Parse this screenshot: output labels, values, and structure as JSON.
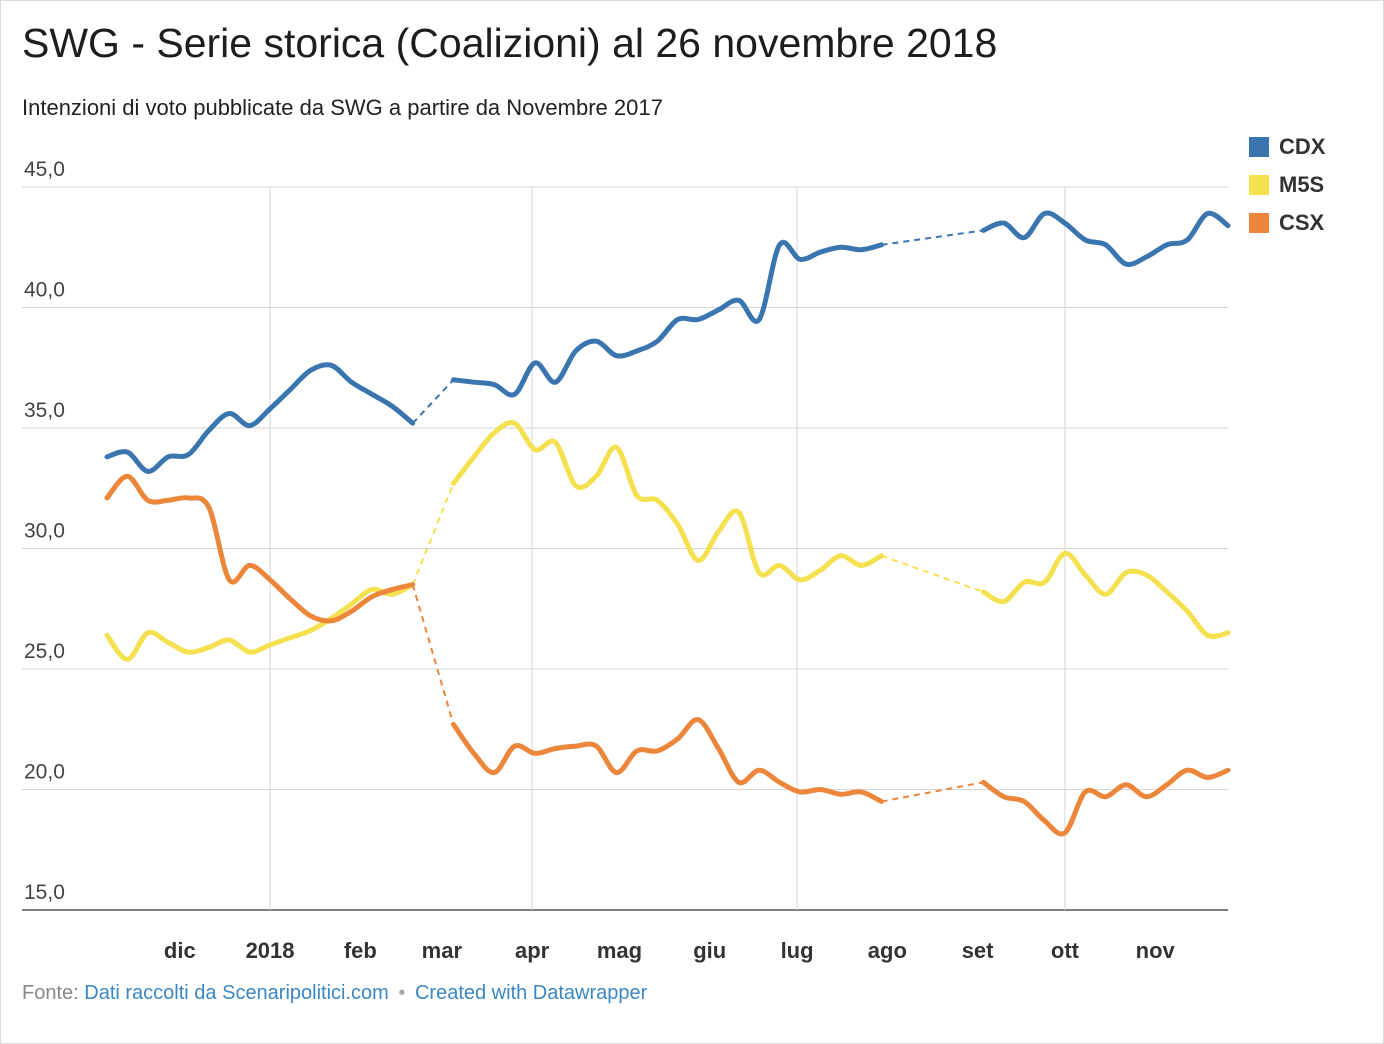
{
  "header": {
    "title": "SWG - Serie storica (Coalizioni) al 26 novembre 2018",
    "subtitle": "Intenzioni di voto pubblicate da SWG a partire da Novembre 2017"
  },
  "footer": {
    "source_label": "Fonte:",
    "source_link": "Dati raccolti da Scenaripolitici.com",
    "separator": "•",
    "credit_link": "Created with Datawrapper"
  },
  "chart_data": {
    "type": "line",
    "title": "SWG - Serie storica (Coalizioni) al 26 novembre 2018",
    "subtitle": "Intenzioni di voto pubblicate da SWG a partire da Novembre 2017",
    "xlabel": "",
    "ylabel": "",
    "ylim": [
      15,
      45
    ],
    "xlim": [
      "2017-11-06",
      "2018-11-26"
    ],
    "y_ticks": [
      15,
      20,
      25,
      30,
      35,
      40,
      45
    ],
    "y_tick_labels": [
      "15,0",
      "20,0",
      "25,0",
      "30,0",
      "35,0",
      "40,0",
      "45,0"
    ],
    "x_ticks": [
      {
        "date": "2017-12-01",
        "label": "dic"
      },
      {
        "date": "2018-01-01",
        "label": "2018"
      },
      {
        "date": "2018-02-01",
        "label": "feb"
      },
      {
        "date": "2018-03-01",
        "label": "mar"
      },
      {
        "date": "2018-04-01",
        "label": "apr"
      },
      {
        "date": "2018-05-01",
        "label": "mag"
      },
      {
        "date": "2018-06-01",
        "label": "giu"
      },
      {
        "date": "2018-07-01",
        "label": "lug"
      },
      {
        "date": "2018-08-01",
        "label": "ago"
      },
      {
        "date": "2018-09-01",
        "label": "set"
      },
      {
        "date": "2018-10-01",
        "label": "ott"
      },
      {
        "date": "2018-11-01",
        "label": "nov"
      }
    ],
    "vertical_gridlines": [
      "2018-01-01",
      "2018-04-01",
      "2018-07-01",
      "2018-10-01"
    ],
    "grid": true,
    "legend_position": "top-right",
    "gaps": [
      {
        "from": "2018-02-19",
        "to": "2018-03-05"
      },
      {
        "from": "2018-07-30",
        "to": "2018-09-03"
      }
    ],
    "series": [
      {
        "name": "CDX",
        "color": "#3a75b0",
        "points": [
          [
            "2017-11-06",
            33.8
          ],
          [
            "2017-11-13",
            34.0
          ],
          [
            "2017-11-20",
            33.2
          ],
          [
            "2017-11-27",
            33.8
          ],
          [
            "2017-12-04",
            33.9
          ],
          [
            "2017-12-11",
            34.9
          ],
          [
            "2017-12-18",
            35.6
          ],
          [
            "2017-12-25",
            35.1
          ],
          [
            "2018-01-01",
            35.8
          ],
          [
            "2018-01-08",
            36.6
          ],
          [
            "2018-01-15",
            37.4
          ],
          [
            "2018-01-22",
            37.6
          ],
          [
            "2018-01-29",
            36.9
          ],
          [
            "2018-02-05",
            36.4
          ],
          [
            "2018-02-12",
            35.9
          ],
          [
            "2018-02-19",
            35.2
          ],
          [
            "2018-03-05",
            37.0
          ],
          [
            "2018-03-12",
            36.9
          ],
          [
            "2018-03-19",
            36.8
          ],
          [
            "2018-03-26",
            36.4
          ],
          [
            "2018-04-02",
            37.7
          ],
          [
            "2018-04-09",
            36.9
          ],
          [
            "2018-04-16",
            38.2
          ],
          [
            "2018-04-23",
            38.6
          ],
          [
            "2018-04-30",
            38.0
          ],
          [
            "2018-05-07",
            38.2
          ],
          [
            "2018-05-14",
            38.6
          ],
          [
            "2018-05-21",
            39.5
          ],
          [
            "2018-05-28",
            39.5
          ],
          [
            "2018-06-04",
            39.9
          ],
          [
            "2018-06-11",
            40.3
          ],
          [
            "2018-06-18",
            39.5
          ],
          [
            "2018-06-25",
            42.6
          ],
          [
            "2018-07-02",
            42.0
          ],
          [
            "2018-07-09",
            42.3
          ],
          [
            "2018-07-16",
            42.5
          ],
          [
            "2018-07-23",
            42.4
          ],
          [
            "2018-07-30",
            42.6
          ],
          [
            "2018-09-03",
            43.2
          ],
          [
            "2018-09-10",
            43.5
          ],
          [
            "2018-09-17",
            42.9
          ],
          [
            "2018-09-24",
            43.9
          ],
          [
            "2018-10-01",
            43.5
          ],
          [
            "2018-10-08",
            42.8
          ],
          [
            "2018-10-15",
            42.6
          ],
          [
            "2018-10-22",
            41.8
          ],
          [
            "2018-10-29",
            42.1
          ],
          [
            "2018-11-05",
            42.6
          ],
          [
            "2018-11-12",
            42.8
          ],
          [
            "2018-11-19",
            43.9
          ],
          [
            "2018-11-26",
            43.4
          ]
        ]
      },
      {
        "name": "M5S",
        "color": "#f5e04f",
        "points": [
          [
            "2017-11-06",
            26.4
          ],
          [
            "2017-11-13",
            25.4
          ],
          [
            "2017-11-20",
            26.5
          ],
          [
            "2017-11-27",
            26.1
          ],
          [
            "2017-12-04",
            25.7
          ],
          [
            "2017-12-11",
            25.9
          ],
          [
            "2017-12-18",
            26.2
          ],
          [
            "2017-12-25",
            25.7
          ],
          [
            "2018-01-01",
            26.0
          ],
          [
            "2018-01-08",
            26.3
          ],
          [
            "2018-01-15",
            26.6
          ],
          [
            "2018-01-22",
            27.1
          ],
          [
            "2018-01-29",
            27.7
          ],
          [
            "2018-02-05",
            28.3
          ],
          [
            "2018-02-12",
            28.1
          ],
          [
            "2018-02-19",
            28.5
          ],
          [
            "2018-03-05",
            32.7
          ],
          [
            "2018-03-12",
            33.8
          ],
          [
            "2018-03-19",
            34.8
          ],
          [
            "2018-03-26",
            35.2
          ],
          [
            "2018-04-02",
            34.1
          ],
          [
            "2018-04-09",
            34.4
          ],
          [
            "2018-04-16",
            32.6
          ],
          [
            "2018-04-23",
            33.0
          ],
          [
            "2018-04-30",
            34.2
          ],
          [
            "2018-05-07",
            32.2
          ],
          [
            "2018-05-14",
            32.0
          ],
          [
            "2018-05-21",
            31.0
          ],
          [
            "2018-05-28",
            29.5
          ],
          [
            "2018-06-04",
            30.7
          ],
          [
            "2018-06-11",
            31.5
          ],
          [
            "2018-06-18",
            29.0
          ],
          [
            "2018-06-25",
            29.3
          ],
          [
            "2018-07-02",
            28.7
          ],
          [
            "2018-07-09",
            29.1
          ],
          [
            "2018-07-16",
            29.7
          ],
          [
            "2018-07-23",
            29.3
          ],
          [
            "2018-07-30",
            29.7
          ],
          [
            "2018-09-03",
            28.2
          ],
          [
            "2018-09-10",
            27.8
          ],
          [
            "2018-09-17",
            28.6
          ],
          [
            "2018-09-24",
            28.6
          ],
          [
            "2018-10-01",
            29.8
          ],
          [
            "2018-10-08",
            28.9
          ],
          [
            "2018-10-15",
            28.1
          ],
          [
            "2018-10-22",
            29.0
          ],
          [
            "2018-10-29",
            28.9
          ],
          [
            "2018-11-05",
            28.2
          ],
          [
            "2018-11-12",
            27.4
          ],
          [
            "2018-11-19",
            26.4
          ],
          [
            "2018-11-26",
            26.5
          ]
        ]
      },
      {
        "name": "CSX",
        "color": "#ec863b",
        "points": [
          [
            "2017-11-06",
            32.1
          ],
          [
            "2017-11-13",
            33.0
          ],
          [
            "2017-11-20",
            32.0
          ],
          [
            "2017-11-27",
            32.0
          ],
          [
            "2017-12-04",
            32.1
          ],
          [
            "2017-12-11",
            31.7
          ],
          [
            "2017-12-18",
            28.7
          ],
          [
            "2017-12-25",
            29.3
          ],
          [
            "2018-01-01",
            28.7
          ],
          [
            "2018-01-08",
            27.9
          ],
          [
            "2018-01-15",
            27.2
          ],
          [
            "2018-01-22",
            27.0
          ],
          [
            "2018-01-29",
            27.4
          ],
          [
            "2018-02-05",
            28.0
          ],
          [
            "2018-02-12",
            28.3
          ],
          [
            "2018-02-19",
            28.5
          ],
          [
            "2018-03-05",
            22.7
          ],
          [
            "2018-03-12",
            21.5
          ],
          [
            "2018-03-19",
            20.7
          ],
          [
            "2018-03-26",
            21.8
          ],
          [
            "2018-04-02",
            21.5
          ],
          [
            "2018-04-09",
            21.7
          ],
          [
            "2018-04-16",
            21.8
          ],
          [
            "2018-04-23",
            21.8
          ],
          [
            "2018-04-30",
            20.7
          ],
          [
            "2018-05-07",
            21.6
          ],
          [
            "2018-05-14",
            21.6
          ],
          [
            "2018-05-21",
            22.1
          ],
          [
            "2018-05-28",
            22.9
          ],
          [
            "2018-06-04",
            21.7
          ],
          [
            "2018-06-11",
            20.3
          ],
          [
            "2018-06-18",
            20.8
          ],
          [
            "2018-06-25",
            20.3
          ],
          [
            "2018-07-02",
            19.9
          ],
          [
            "2018-07-09",
            20.0
          ],
          [
            "2018-07-16",
            19.8
          ],
          [
            "2018-07-23",
            19.9
          ],
          [
            "2018-07-30",
            19.5
          ],
          [
            "2018-09-03",
            20.3
          ],
          [
            "2018-09-10",
            19.7
          ],
          [
            "2018-09-17",
            19.5
          ],
          [
            "2018-09-24",
            18.7
          ],
          [
            "2018-10-01",
            18.2
          ],
          [
            "2018-10-08",
            19.9
          ],
          [
            "2018-10-15",
            19.7
          ],
          [
            "2018-10-22",
            20.2
          ],
          [
            "2018-10-29",
            19.7
          ],
          [
            "2018-11-05",
            20.2
          ],
          [
            "2018-11-12",
            20.8
          ],
          [
            "2018-11-19",
            20.5
          ],
          [
            "2018-11-26",
            20.8
          ]
        ]
      }
    ]
  }
}
